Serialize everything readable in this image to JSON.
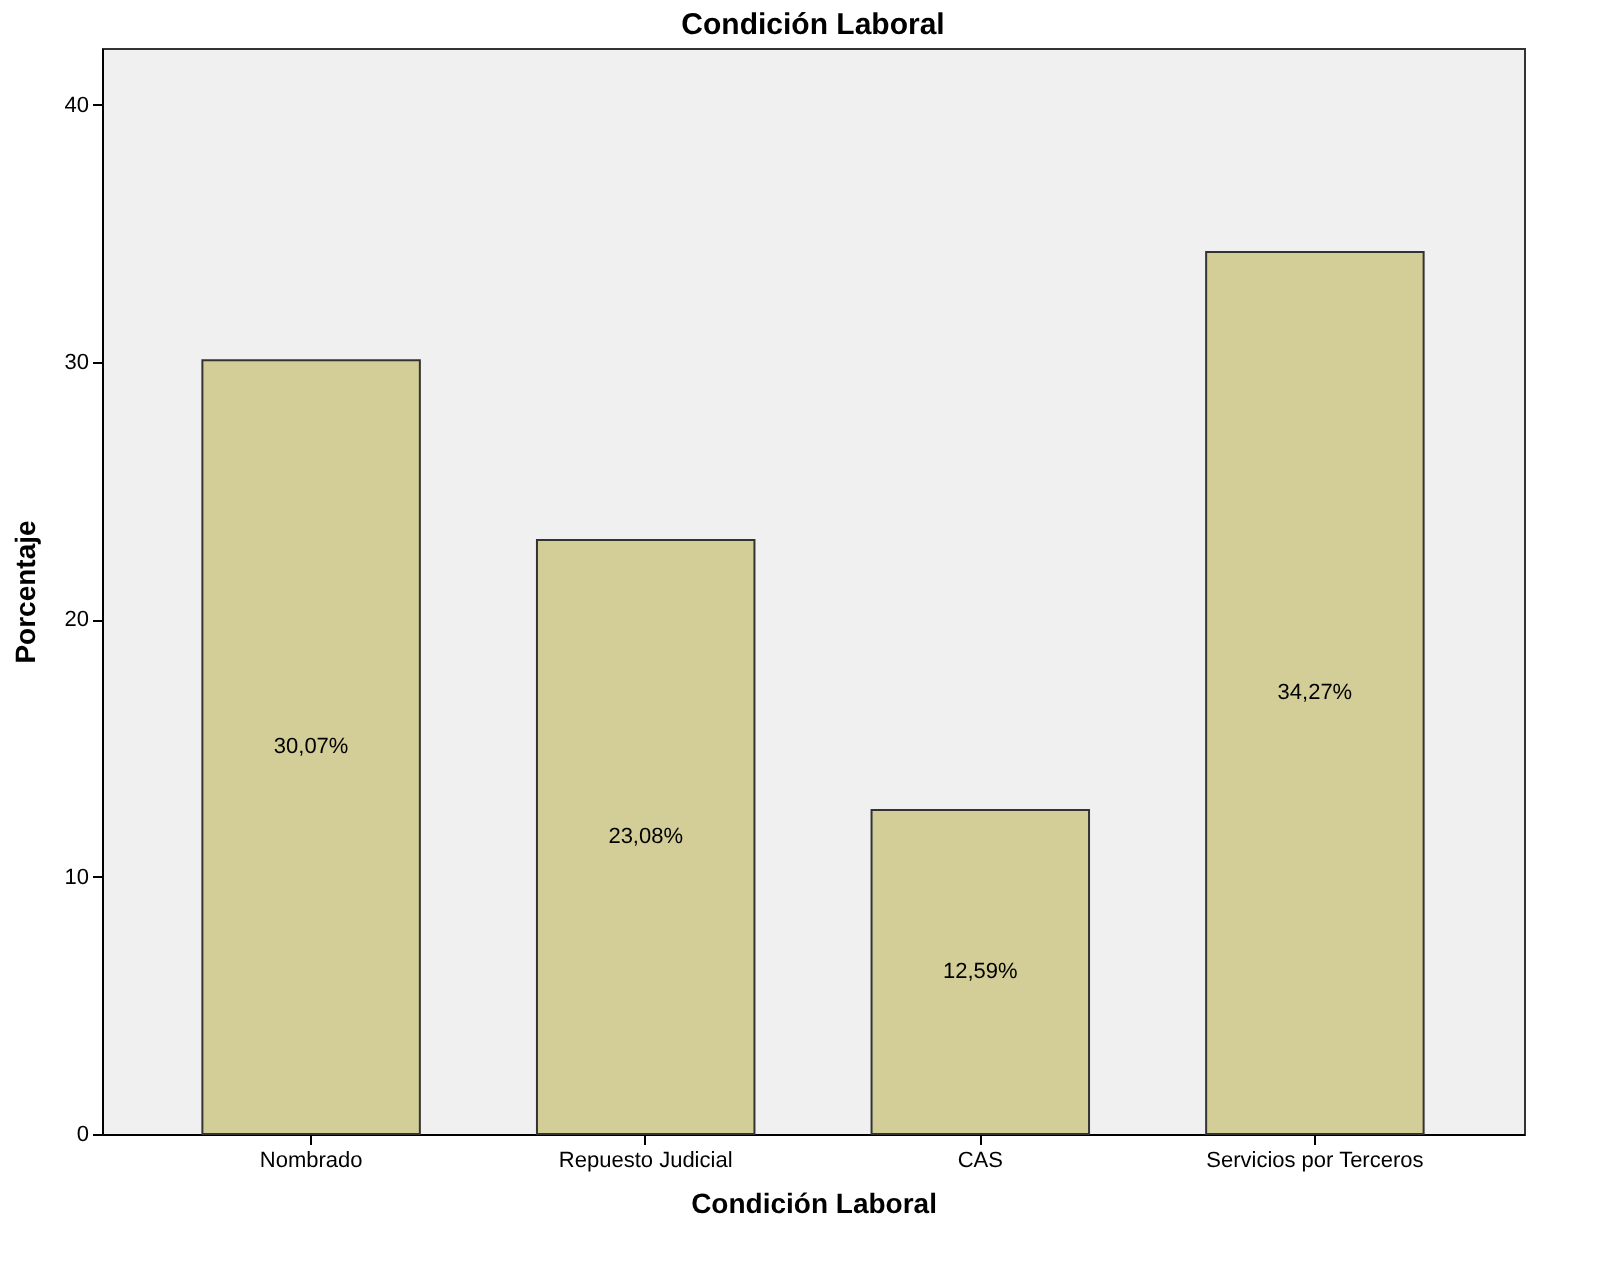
{
  "chart_data": {
    "type": "bar",
    "title": "Condición Laboral",
    "xlabel": "Condición Laboral",
    "ylabel": "Porcentaje",
    "categories": [
      "Nombrado",
      "Repuesto Judicial",
      "CAS",
      "Servicios por Terceros"
    ],
    "values": [
      30.07,
      23.08,
      12.59,
      34.27
    ],
    "value_labels": [
      "30,07%",
      "23,08%",
      "12,59%",
      "34,27%"
    ],
    "color": "#d3ce97",
    "ylim": [
      0,
      42.2
    ],
    "yticks": [
      0,
      10,
      20,
      30,
      40
    ],
    "grid": false
  }
}
